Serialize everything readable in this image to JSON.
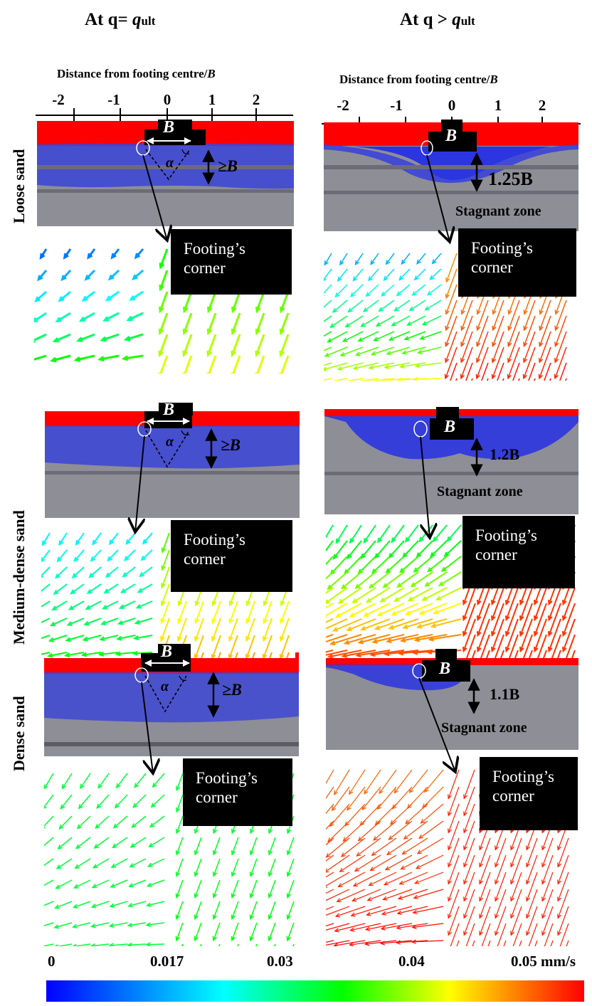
{
  "columns": [
    {
      "prefix": "At q= ",
      "q": "q",
      "sub": "ult"
    },
    {
      "prefix": "At q > ",
      "q": "q",
      "sub": "ult"
    }
  ],
  "axis": {
    "title_prefix": "Distance from footing centre/",
    "title_var": "B",
    "ticks": [
      "-2",
      "-1",
      "0",
      "1",
      "2"
    ]
  },
  "rows": [
    "Loose sand",
    "Medium-dense sand",
    "Dense sand"
  ],
  "footing": {
    "label": "B",
    "angle": "α"
  },
  "annotations": {
    "depth_ge": "≥B",
    "loose_depth": "1.25B",
    "medium_depth": "1.2B",
    "dense_depth": "1.1B",
    "stagnant": "Stagnant zone"
  },
  "callout": "Footing’s corner",
  "colorbar": {
    "labels": [
      "0",
      "0.017",
      "0.03",
      "0.04",
      "0.05 mm/s"
    ],
    "colors": [
      "#0000ff",
      "#00ffff",
      "#00ff00",
      "#ffff00",
      "#ff0000"
    ]
  }
}
